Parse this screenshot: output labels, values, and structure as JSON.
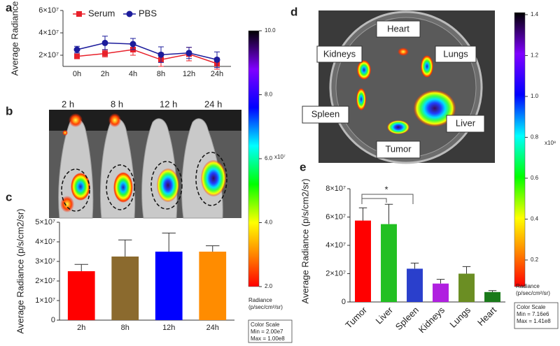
{
  "chart_data": [
    {
      "type": "line",
      "panel": "a",
      "y_label": "Average Radiance",
      "categories": [
        "0h",
        "2h",
        "4h",
        "8h",
        "12h",
        "24h"
      ],
      "series": [
        {
          "name": "Serum",
          "color": "#e8202a",
          "marker": "square",
          "values": [
            19000000,
            21500000,
            25000000,
            16000000,
            21000000,
            12500000
          ],
          "errors": [
            2000000,
            3000000,
            5000000,
            6000000,
            6000000,
            5000000
          ]
        },
        {
          "name": "PBS",
          "color": "#1c1c9c",
          "marker": "circle",
          "values": [
            25000000,
            31000000,
            30000000,
            20500000,
            22000000,
            16000000
          ],
          "errors": [
            3000000,
            6000000,
            5000000,
            7000000,
            5000000,
            7000000
          ]
        }
      ],
      "ylim": [
        10000000,
        60000000
      ],
      "yticks": [
        {
          "value": 20000000,
          "label": "2×10⁷"
        },
        {
          "value": 40000000,
          "label": "4×10⁷"
        },
        {
          "value": 60000000,
          "label": "6×10⁷"
        }
      ]
    },
    {
      "type": "bar",
      "panel": "c",
      "y_label": "Average Radiance (p/s/cm2/sr)",
      "categories": [
        "2h",
        "8h",
        "12h",
        "24h"
      ],
      "values": [
        25000000,
        32500000,
        35000000,
        35000000
      ],
      "errors": [
        3500000,
        8500000,
        9500000,
        3000000
      ],
      "colors": [
        "#ff0000",
        "#8b6a2e",
        "#0000ff",
        "#ff8c00"
      ],
      "ylim": [
        0,
        50000000
      ],
      "yticks": [
        0,
        {
          "value": 10000000,
          "label": "1×10⁷"
        },
        {
          "value": 20000000,
          "label": "2×10⁷"
        },
        {
          "value": 30000000,
          "label": "3×10⁷"
        },
        {
          "value": 40000000,
          "label": "4×10⁷"
        },
        {
          "value": 50000000,
          "label": "5×10⁷"
        }
      ]
    },
    {
      "type": "bar",
      "panel": "e",
      "y_label": "Average Radiance (p/s/cm2/sr)",
      "categories": [
        "Tumor",
        "Liver",
        "Spleen",
        "Kidneys",
        "Lungs",
        "Heart"
      ],
      "values": [
        57500000,
        55000000,
        23500000,
        13000000,
        20000000,
        7000000
      ],
      "errors": [
        9000000,
        14000000,
        4000000,
        3000000,
        5000000,
        1000000
      ],
      "colors": [
        "#ff0000",
        "#22c022",
        "#2a3fcc",
        "#b020e0",
        "#6b8e23",
        "#1a7a1a"
      ],
      "annotation": "*",
      "ylim": [
        0,
        80000000
      ],
      "yticks": [
        0,
        {
          "value": 20000000,
          "label": "2×10⁷"
        },
        {
          "value": 40000000,
          "label": "4×10⁷"
        },
        {
          "value": 60000000,
          "label": "6×10⁷"
        },
        {
          "value": 80000000,
          "label": "8×10⁷"
        }
      ]
    },
    {
      "type": "colorbar",
      "multiplier": "x10⁷",
      "label_lines": [
        "Radiance",
        "(p/sec/cm²/sr)"
      ],
      "scale_box": [
        "Color Scale",
        "Min = 2.00e7",
        "Max = 1.00e8"
      ],
      "ylim": [
        2,
        10
      ],
      "yticks": [
        {
          "value": 2,
          "label": "2.0"
        },
        {
          "value": 4,
          "label": "4.0"
        },
        {
          "value": 6,
          "label": "6.0"
        },
        {
          "value": 8,
          "label": "8.0"
        },
        {
          "value": 10,
          "label": "10.0"
        }
      ]
    },
    {
      "type": "colorbar",
      "multiplier": "x10⁸",
      "label_lines": [
        "Radiance",
        "(p/sec/cm²/sr)"
      ],
      "scale_box": [
        "Color Scale",
        "Min = 7.16e6",
        "Max = 1.41e8"
      ],
      "ylim": [
        0.07,
        1.41
      ],
      "yticks": [
        0.2,
        0.4,
        0.6,
        0.8,
        {
          "value": 1,
          "label": "1.0"
        },
        1.2,
        1.4
      ]
    }
  ],
  "images": [
    {
      "panel": "b",
      "labels": [
        "2 h",
        "8 h",
        "12 h",
        "24 h"
      ]
    },
    {
      "panel": "d",
      "labels": [
        "Heart",
        "Kidneys",
        "Lungs",
        "Spleen",
        "Liver",
        "Tumor"
      ]
    }
  ]
}
